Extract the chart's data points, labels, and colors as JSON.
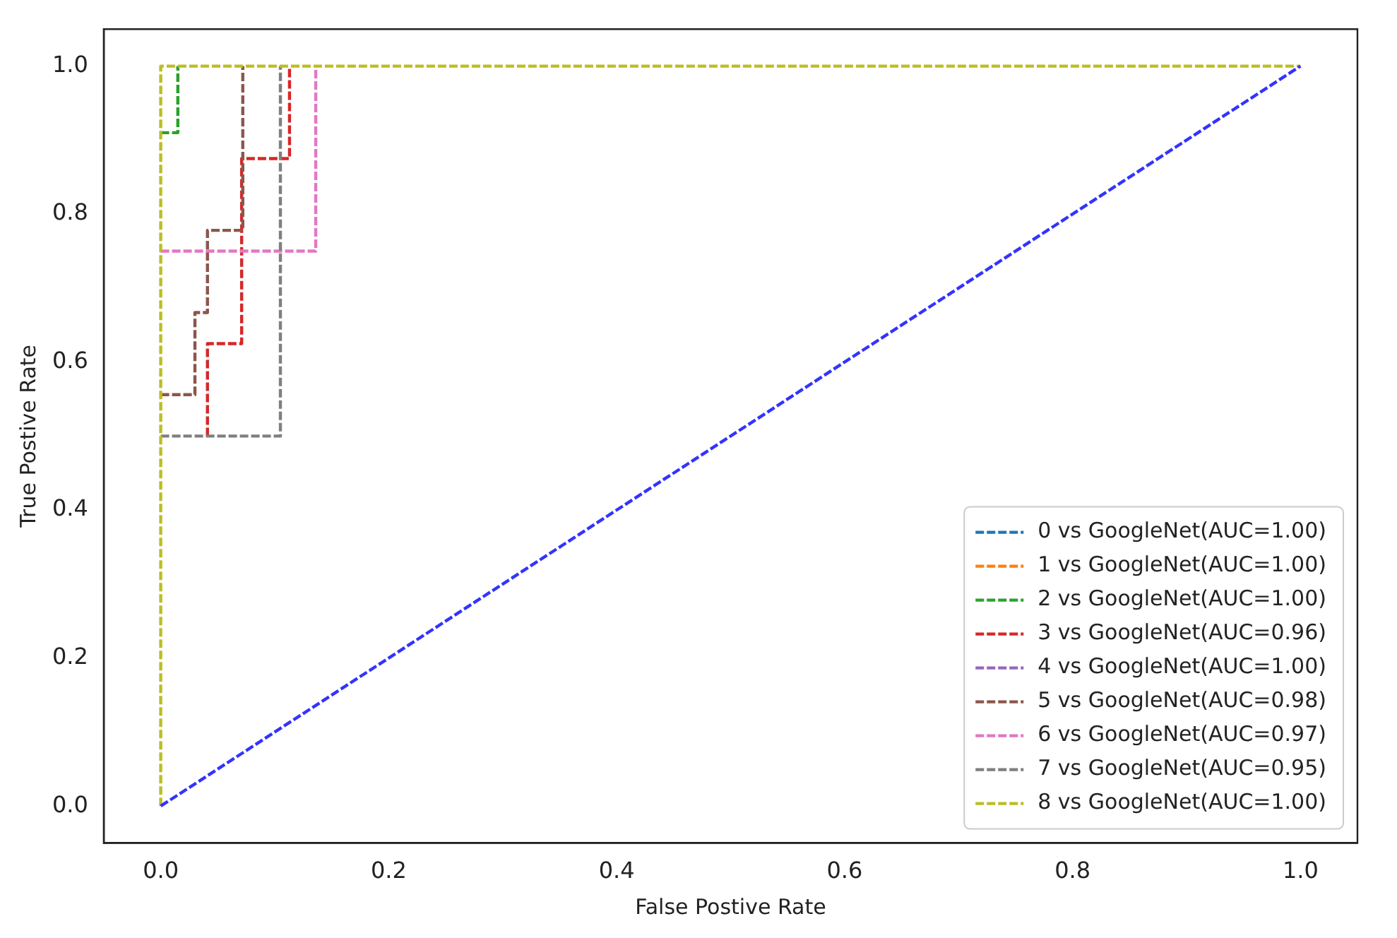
{
  "chart_data": {
    "type": "line",
    "xlabel": "False Postive Rate",
    "ylabel": "True Postive Rate",
    "xlim": [
      -0.05,
      1.05
    ],
    "ylim": [
      -0.05,
      1.05
    ],
    "xticks": [
      {
        "value": 0,
        "label": "0.0"
      },
      {
        "value": 0.2,
        "label": "0.2"
      },
      {
        "value": 0.4,
        "label": "0.4"
      },
      {
        "value": 0.6,
        "label": "0.6"
      },
      {
        "value": 0.8,
        "label": "0.8"
      },
      {
        "value": 1,
        "label": "1.0"
      }
    ],
    "yticks": [
      {
        "value": 0,
        "label": "0.0"
      },
      {
        "value": 0.2,
        "label": "0.2"
      },
      {
        "value": 0.4,
        "label": "0.4"
      },
      {
        "value": 0.6,
        "label": "0.6"
      },
      {
        "value": 0.8,
        "label": "0.8"
      },
      {
        "value": 1,
        "label": "1.0"
      }
    ],
    "line_style": "dashed",
    "marker": "none",
    "legend": "bottom right",
    "grid": false,
    "series": [
      {
        "name": "0 vs GoogleNet(AUC=1.00)",
        "color": "#1f77b4"
      },
      {
        "name": "1 vs GoogleNet(AUC=1.00)",
        "color": "#ff7f0e"
      },
      {
        "name": "2 vs GoogleNet(AUC=1.00)",
        "color": "#2ca02c",
        "x": [
          0,
          0.015,
          0.015
        ],
        "values": [
          0.91,
          0.91,
          1
        ]
      },
      {
        "name": "3 vs GoogleNet(AUC=0.96)",
        "color": "#d62728",
        "x": [
          0.041,
          0.041,
          0.071,
          0.071,
          0.113,
          0.113
        ],
        "values": [
          0.5,
          0.625,
          0.625,
          0.875,
          0.875,
          1
        ]
      },
      {
        "name": "4 vs GoogleNet(AUC=1.00)",
        "color": "#9467bd"
      },
      {
        "name": "5 vs GoogleNet(AUC=0.98)",
        "color": "#8c564b",
        "x": [
          0,
          0.03,
          0.03,
          0.041,
          0.041,
          0.072,
          0.072
        ],
        "values": [
          0.556,
          0.556,
          0.667,
          0.667,
          0.778,
          0.778,
          1
        ]
      },
      {
        "name": "6 vs GoogleNet(AUC=0.97)",
        "color": "#e377c2",
        "x": [
          0,
          0.136,
          0.136
        ],
        "values": [
          0.75,
          0.75,
          1
        ]
      },
      {
        "name": "7 vs GoogleNet(AUC=0.95)",
        "color": "#7f7f7f",
        "x": [
          0,
          0.105,
          0.105
        ],
        "values": [
          0.5,
          0.5,
          1
        ]
      },
      {
        "name": "8 vs GoogleNet(AUC=1.00)",
        "color": "#bcbd22",
        "x": [
          0,
          0,
          1
        ],
        "values": [
          0,
          1,
          1
        ]
      },
      {
        "color": "#3333ff",
        "x": [
          0,
          1
        ],
        "values": [
          0,
          1
        ]
      }
    ]
  }
}
